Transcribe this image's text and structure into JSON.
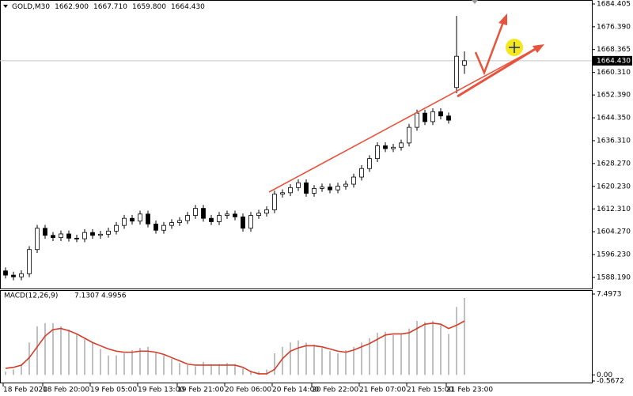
{
  "chart_data": {
    "type": "candlestick",
    "symbol": "GOLD,M30",
    "header_labels": [
      "1662.900",
      "1667.710",
      "1659.800",
      "1664.430"
    ],
    "categories": [
      "18 Feb 2020",
      null,
      null,
      null,
      null,
      "18 Feb 20:00",
      null,
      null,
      null,
      null,
      null,
      "19 Feb 05:00",
      null,
      null,
      null,
      null,
      null,
      "19 Feb 13:00",
      null,
      null,
      null,
      null,
      "19 Feb 21:00",
      null,
      null,
      null,
      null,
      null,
      "20 Feb 06:00",
      null,
      null,
      null,
      null,
      null,
      "20 Feb 14:00",
      null,
      null,
      null,
      null,
      "20 Feb 22:00",
      null,
      null,
      null,
      null,
      null,
      "21 Feb 07:00",
      null,
      null,
      null,
      null,
      null,
      "21 Feb 15:00",
      null,
      null,
      null,
      null,
      "21 Feb 23:00",
      null,
      null
    ],
    "open": [
      1590.5,
      1589.0,
      1588.4,
      1589.5,
      1598.0,
      1605.5,
      1603.0,
      1602.2,
      1603.5,
      1602.0,
      1601.8,
      1604.0,
      1603.0,
      1603.4,
      1604.5,
      1606.5,
      1609.0,
      1608.0,
      1610.5,
      1607.0,
      1604.8,
      1606.5,
      1607.5,
      1608.2,
      1610.0,
      1612.5,
      1609.0,
      1607.8,
      1610.0,
      1610.5,
      1609.5,
      1605.5,
      1610.0,
      1610.8,
      1612.0,
      1617.5,
      1618.0,
      1619.8,
      1621.5,
      1617.8,
      1619.5,
      1620.0,
      1619.0,
      1620.3,
      1621.0,
      1623.5,
      1626.5,
      1630.0,
      1634.5,
      1633.5,
      1634.0,
      1635.5,
      1641.0,
      1646.0,
      1643.0,
      1646.5,
      1645.0,
      1655.0,
      1662.9
    ],
    "high": [
      1591.7,
      1590.2,
      1590.7,
      1599.2,
      1606.7,
      1606.7,
      1604.2,
      1604.7,
      1604.7,
      1603.2,
      1605.2,
      1605.2,
      1604.6,
      1605.7,
      1607.7,
      1610.2,
      1610.2,
      1611.7,
      1611.7,
      1608.2,
      1607.7,
      1608.7,
      1609.4,
      1611.2,
      1613.7,
      1613.7,
      1610.2,
      1611.2,
      1611.7,
      1611.7,
      1610.7,
      1611.2,
      1612.0,
      1613.2,
      1618.7,
      1619.2,
      1621.0,
      1622.7,
      1622.7,
      1620.7,
      1621.2,
      1621.2,
      1621.5,
      1622.2,
      1624.7,
      1627.7,
      1631.2,
      1635.7,
      1635.7,
      1635.2,
      1636.7,
      1642.2,
      1647.2,
      1647.2,
      1647.7,
      1647.7,
      1646.2,
      1680.2,
      1667.71
    ],
    "low": [
      1587.8,
      1587.2,
      1587.2,
      1588.3,
      1596.8,
      1601.8,
      1601.0,
      1601.0,
      1600.8,
      1600.6,
      1600.6,
      1601.8,
      1601.8,
      1602.2,
      1603.3,
      1605.3,
      1606.8,
      1606.8,
      1605.8,
      1603.6,
      1603.6,
      1605.3,
      1606.3,
      1607.0,
      1608.8,
      1607.8,
      1606.6,
      1606.6,
      1608.8,
      1608.3,
      1604.3,
      1604.3,
      1608.8,
      1609.6,
      1610.8,
      1616.3,
      1616.8,
      1618.6,
      1616.6,
      1616.6,
      1618.3,
      1617.8,
      1617.8,
      1619.1,
      1619.8,
      1622.3,
      1625.3,
      1628.8,
      1632.3,
      1632.3,
      1632.8,
      1634.3,
      1639.8,
      1641.8,
      1641.8,
      1643.8,
      1642.3,
      1653.0,
      1659.8
    ],
    "close": [
      1589.0,
      1588.4,
      1589.5,
      1598.0,
      1605.5,
      1603.0,
      1602.2,
      1603.5,
      1602.0,
      1601.8,
      1604.0,
      1603.0,
      1603.4,
      1604.5,
      1606.5,
      1609.0,
      1608.0,
      1610.5,
      1607.0,
      1604.8,
      1606.5,
      1607.5,
      1608.2,
      1610.0,
      1612.5,
      1609.0,
      1607.8,
      1610.0,
      1610.5,
      1609.5,
      1605.5,
      1610.0,
      1610.8,
      1612.0,
      1617.5,
      1618.0,
      1619.8,
      1621.5,
      1617.8,
      1619.5,
      1620.0,
      1619.0,
      1620.3,
      1621.0,
      1623.5,
      1626.5,
      1630.0,
      1634.5,
      1633.5,
      1634.0,
      1635.5,
      1641.0,
      1646.0,
      1643.0,
      1646.5,
      1645.0,
      1643.5,
      1666.0,
      1664.43
    ],
    "up_color": "#ffffff",
    "down_color": "#000000",
    "ylim": [
      1584.3,
      1685.8
    ],
    "yticks": [
      1684.405,
      {
        "value": 1676.39,
        "label": "1676.390"
      },
      1668.365,
      {
        "value": 1660.31,
        "label": "1660.310"
      },
      {
        "value": 1652.39,
        "label": "1652.390"
      },
      {
        "value": 1644.35,
        "label": "1644.350"
      },
      {
        "value": 1636.31,
        "label": "1636.310"
      },
      {
        "value": 1628.27,
        "label": "1628.270"
      },
      {
        "value": 1620.23,
        "label": "1620.230"
      },
      {
        "value": 1612.31,
        "label": "1612.310"
      },
      {
        "value": 1604.27,
        "label": "1604.270"
      },
      {
        "value": 1596.23,
        "label": "1596.230"
      },
      {
        "value": 1588.19,
        "label": "1588.190"
      }
    ],
    "current_price": {
      "value": 1664.43,
      "label": "1664.430"
    },
    "macd": {
      "type": "macd",
      "name": "MACD(12,26,9)",
      "histogram": [
        0.3,
        0.5,
        1.0,
        3.0,
        4.5,
        4.8,
        4.8,
        4.5,
        4.2,
        3.8,
        3.3,
        3.0,
        2.4,
        1.8,
        1.8,
        2.0,
        2.3,
        2.5,
        2.6,
        2.1,
        1.8,
        1.5,
        1.1,
        0.9,
        0.8,
        1.2,
        1.0,
        1.0,
        1.1,
        1.0,
        0.6,
        0.4,
        0.3,
        0.5,
        2.0,
        2.6,
        3.0,
        3.2,
        3.0,
        2.8,
        2.5,
        2.2,
        2.0,
        2.3,
        2.6,
        3.0,
        3.4,
        3.9,
        4.0,
        3.7,
        3.8,
        4.3,
        5.0,
        4.9,
        5.0,
        4.6,
        3.8,
        6.3,
        7.1307
      ],
      "signal": [
        0.6,
        0.7,
        0.9,
        1.6,
        2.6,
        3.6,
        4.2,
        4.3,
        4.1,
        3.8,
        3.4,
        3.0,
        2.7,
        2.4,
        2.2,
        2.1,
        2.1,
        2.2,
        2.2,
        2.1,
        1.9,
        1.6,
        1.3,
        1.0,
        0.9,
        0.9,
        0.9,
        0.9,
        0.9,
        0.9,
        0.7,
        0.3,
        0.1,
        0.1,
        0.5,
        1.5,
        2.2,
        2.5,
        2.7,
        2.7,
        2.6,
        2.4,
        2.2,
        2.1,
        2.3,
        2.6,
        2.9,
        3.3,
        3.7,
        3.8,
        3.8,
        3.9,
        4.3,
        4.7,
        4.8,
        4.7,
        4.3,
        4.6,
        4.9956
      ],
      "histogram_color": "#c0c0c0",
      "signal_color": "#d63b28",
      "ylim": [
        -0.5672,
        7.4973
      ],
      "yticks": [
        7.4973,
        {
          "value": 0,
          "label": "0.00"
        },
        -0.5672
      ]
    }
  }
}
